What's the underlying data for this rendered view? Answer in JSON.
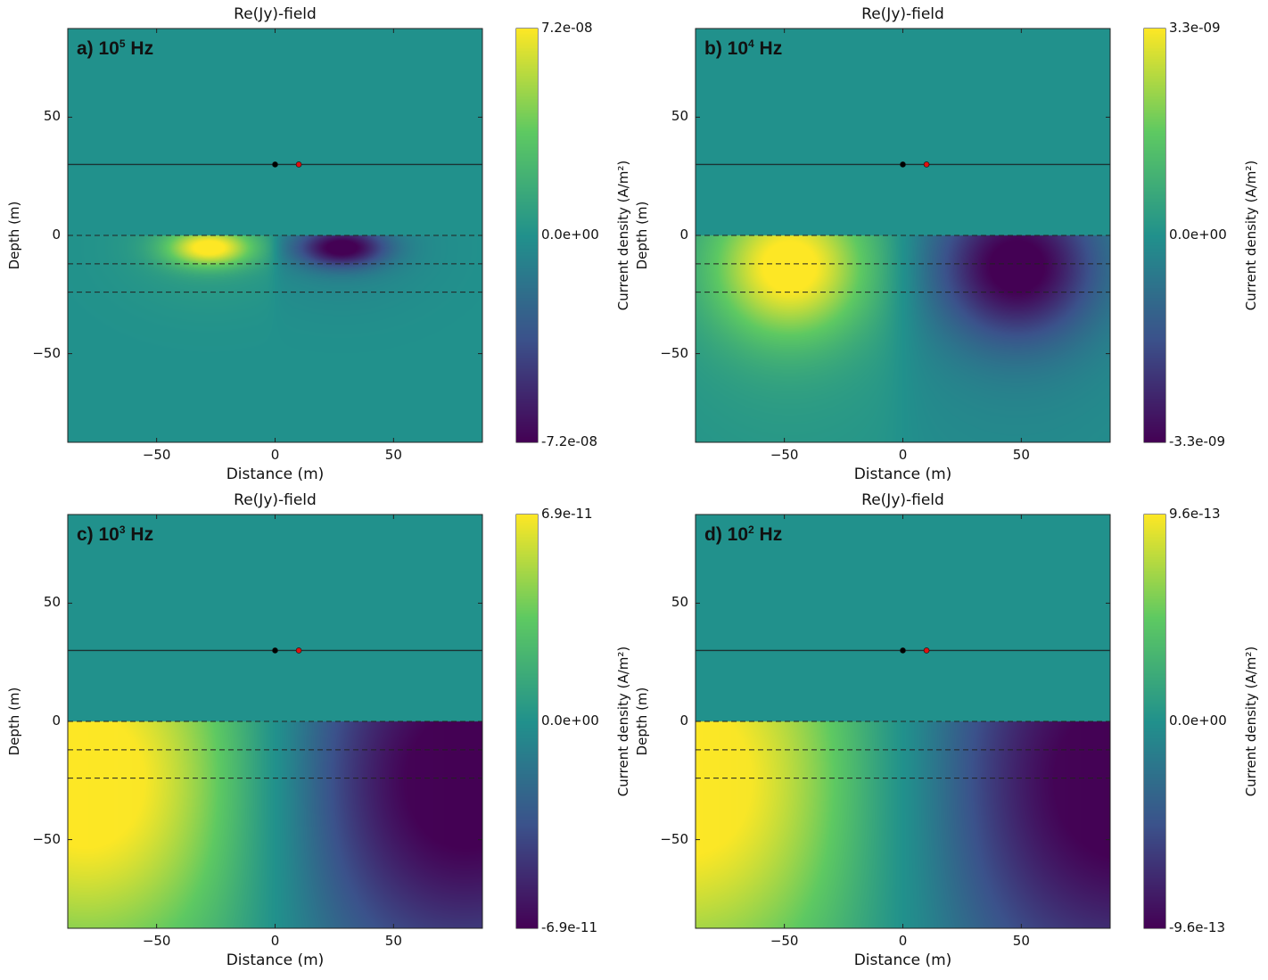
{
  "chart_data": [
    {
      "type": "heatmap",
      "panel": "a",
      "title": "Re(Jy)-field",
      "label": "a) 10",
      "label_exp": "5",
      "label_unit": " Hz",
      "xlabel": "Distance (m)",
      "ylabel": "Depth (m)",
      "xlim": [
        -87.5,
        87.5
      ],
      "ylim": [
        -87.5,
        87.5
      ],
      "xticks": [
        -50,
        0,
        50
      ],
      "yticks": [
        -50,
        0,
        50
      ],
      "colorbar": {
        "label": "Current density (A/m²)",
        "min": -7.2e-08,
        "max": 7.2e-08,
        "tick_labels": [
          "7.2e-08",
          "0.0e+00",
          "-7.2e-08"
        ]
      },
      "field": {
        "peak_x": 28,
        "peak_depth": -5,
        "spread_x": 18,
        "spread_depth": 8,
        "transition": 3
      },
      "surface_line_depth": 30,
      "dashed_depths": [
        0,
        -12,
        -24
      ],
      "markers": [
        {
          "x": 0,
          "depth": 30,
          "color": "#000000"
        },
        {
          "x": 10,
          "depth": 30,
          "color": "#e01010"
        }
      ]
    },
    {
      "type": "heatmap",
      "panel": "b",
      "title": "Re(Jy)-field",
      "label": "b) 10",
      "label_exp": "4",
      "label_unit": " Hz",
      "xlabel": "Distance (m)",
      "ylabel": "Depth (m)",
      "xlim": [
        -87.5,
        87.5
      ],
      "ylim": [
        -87.5,
        87.5
      ],
      "xticks": [
        -50,
        0,
        50
      ],
      "yticks": [
        -50,
        0,
        50
      ],
      "colorbar": {
        "label": "Current density (A/m²)",
        "min": -3.3e-09,
        "max": 3.3e-09,
        "tick_labels": [
          "3.3e-09",
          "0.0e+00",
          "-3.3e-09"
        ]
      },
      "field": {
        "peak_x": 48,
        "peak_depth": -13,
        "spread_x": 32,
        "spread_depth": 30,
        "transition": 8
      },
      "surface_line_depth": 30,
      "dashed_depths": [
        0,
        -12,
        -24
      ],
      "markers": [
        {
          "x": 0,
          "depth": 30,
          "color": "#000000"
        },
        {
          "x": 10,
          "depth": 30,
          "color": "#e01010"
        }
      ]
    },
    {
      "type": "heatmap",
      "panel": "c",
      "title": "Re(Jy)-field",
      "label": "c) 10",
      "label_exp": "3",
      "label_unit": " Hz",
      "xlabel": "Distance (m)",
      "ylabel": "Depth (m)",
      "xlim": [
        -87.5,
        87.5
      ],
      "ylim": [
        -87.5,
        87.5
      ],
      "xticks": [
        -50,
        0,
        50
      ],
      "yticks": [
        -50,
        0,
        50
      ],
      "colorbar": {
        "label": "Current density (A/m²)",
        "min": -6.9e-11,
        "max": 6.9e-11,
        "tick_labels": [
          "6.9e-11",
          "0.0e+00",
          "-6.9e-11"
        ]
      },
      "field": {
        "peak_x": 80,
        "peak_depth": -25,
        "spread_x": 70,
        "spread_depth": 80,
        "transition": 22
      },
      "surface_line_depth": 30,
      "dashed_depths": [
        0,
        -12,
        -24
      ],
      "markers": [
        {
          "x": 0,
          "depth": 30,
          "color": "#000000"
        },
        {
          "x": 10,
          "depth": 30,
          "color": "#e01010"
        }
      ]
    },
    {
      "type": "heatmap",
      "panel": "d",
      "title": "Re(Jy)-field",
      "label": "d) 10",
      "label_exp": "2",
      "label_unit": " Hz",
      "xlabel": "Distance (m)",
      "ylabel": "Depth (m)",
      "xlim": [
        -87.5,
        87.5
      ],
      "ylim": [
        -87.5,
        87.5
      ],
      "xticks": [
        -50,
        0,
        50
      ],
      "yticks": [
        -50,
        0,
        50
      ],
      "colorbar": {
        "label": "Current density (A/m²)",
        "min": -9.6e-13,
        "max": 9.6e-13,
        "tick_labels": [
          "9.6e-13",
          "0.0e+00",
          "-9.6e-13"
        ]
      },
      "field": {
        "peak_x": 92,
        "peak_depth": -25,
        "spread_x": 80,
        "spread_depth": 90,
        "transition": 28
      },
      "surface_line_depth": 30,
      "dashed_depths": [
        0,
        -12,
        -24
      ],
      "markers": [
        {
          "x": 0,
          "depth": 30,
          "color": "#000000"
        },
        {
          "x": 10,
          "depth": 30,
          "color": "#e01010"
        }
      ]
    }
  ],
  "colormap": [
    "#440154",
    "#3b528b",
    "#21918c",
    "#5ec962",
    "#fde725"
  ]
}
